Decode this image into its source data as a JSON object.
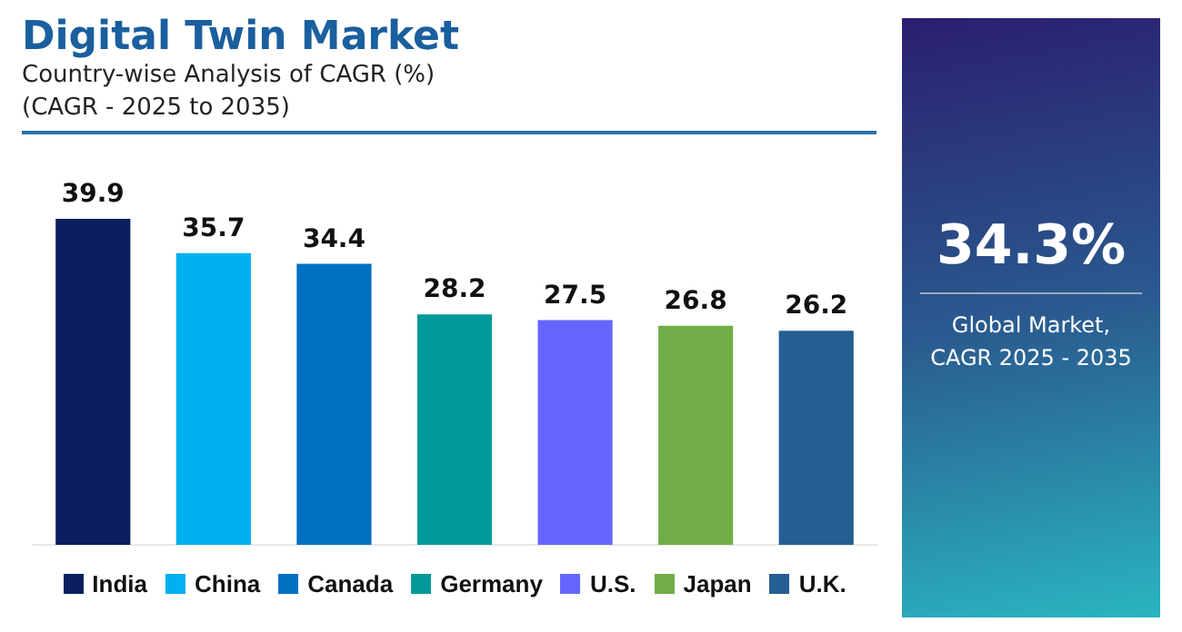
{
  "chart_data": {
    "type": "bar",
    "title": "Digital Twin Market",
    "subtitle": "Country-wise Analysis of CAGR (%)\n(CAGR - 2025 to 2035)",
    "categories": [
      null,
      null,
      null,
      null,
      null,
      null,
      null
    ],
    "series": [
      {
        "name": "India",
        "color": "#0b1f5e",
        "values": [
          39.9,
          null,
          null,
          null,
          null,
          null,
          null
        ]
      },
      {
        "name": "China",
        "color": "#00b0f0",
        "values": [
          null,
          35.7,
          null,
          null,
          null,
          null,
          null
        ]
      },
      {
        "name": "Canada",
        "color": "#0070c0",
        "values": [
          null,
          null,
          34.4,
          null,
          null,
          null,
          null
        ]
      },
      {
        "name": "Germany",
        "color": "#00999a",
        "values": [
          null,
          null,
          null,
          28.2,
          null,
          null,
          null
        ]
      },
      {
        "name": "U.S.",
        "color": "#6666ff",
        "values": [
          null,
          null,
          null,
          null,
          27.5,
          null,
          null
        ]
      },
      {
        "name": "Japan",
        "color": "#70ad47",
        "values": [
          null,
          null,
          null,
          null,
          null,
          26.8,
          null
        ]
      },
      {
        "name": "U.K.",
        "color": "#255e91",
        "values": [
          null,
          null,
          null,
          null,
          null,
          null,
          26.2
        ]
      }
    ],
    "stacked": true,
    "data_labels": true,
    "legend": "bottom",
    "annotations": [
      "34.3%",
      "Global Market,\nCAGR 2025 - 2035"
    ]
  }
}
